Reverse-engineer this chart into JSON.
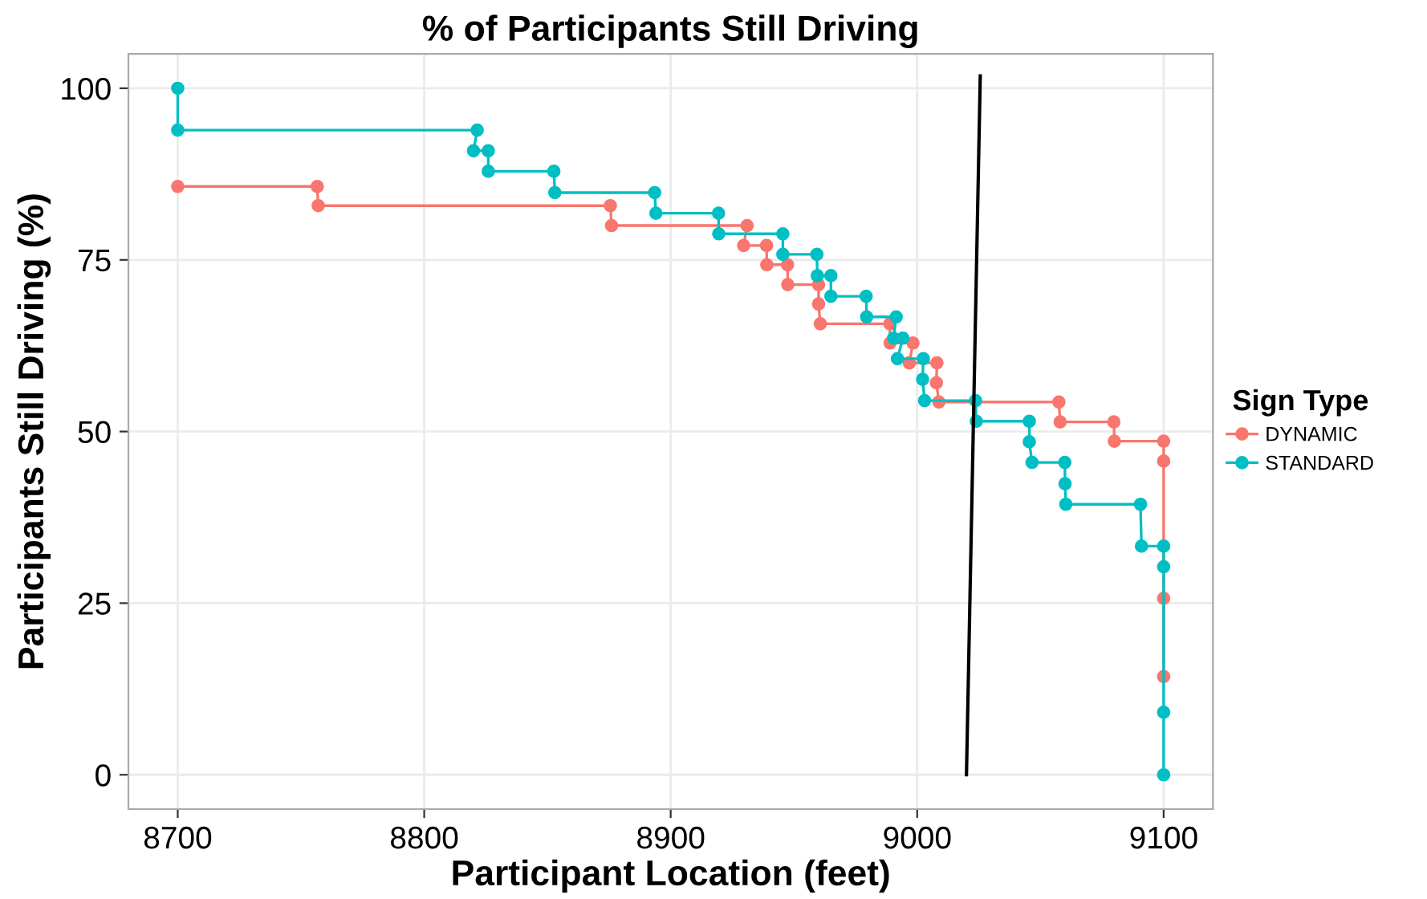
{
  "chart_data": {
    "type": "step",
    "title": "% of Participants Still Driving",
    "xlabel": "Participant Location (feet)",
    "ylabel": "Participants Still Driving (%)",
    "legend_title": "Sign Type",
    "xlim": [
      8680,
      9120
    ],
    "xticks": [
      8700,
      8800,
      8900,
      9000,
      9100
    ],
    "ylim": [
      -5,
      105
    ],
    "yticks": [
      0,
      25,
      50,
      75,
      100
    ],
    "grid": true,
    "legend": "right",
    "marker": "circle",
    "series": [
      {
        "name": "DYNAMIC",
        "color": "#f8766d",
        "x": [
          8700,
          8756.6,
          8757,
          8875.5,
          8876,
          8931,
          8929.6,
          8938.9,
          8939,
          8947.4,
          8947.5,
          8960,
          8960,
          8960.7,
          8988.9,
          8989,
          8998.3,
          8996.8,
          9008,
          9007.8,
          9008.8,
          9057.5,
          9058,
          9079.8,
          9080,
          9100,
          9100,
          9100,
          9100
        ],
        "values": [
          85.7,
          85.7,
          82.9,
          82.9,
          80.0,
          80.0,
          77.1,
          77.1,
          74.3,
          74.3,
          71.4,
          71.4,
          68.6,
          65.7,
          65.7,
          62.9,
          62.9,
          60.0,
          60.0,
          57.1,
          54.3,
          54.3,
          51.4,
          51.4,
          48.6,
          48.6,
          45.7,
          25.7,
          14.3
        ]
      },
      {
        "name": "STANDARD",
        "color": "#00bfc4",
        "x": [
          8700,
          8700,
          8821.5,
          8820,
          8826,
          8826,
          8852.6,
          8853,
          8893.5,
          8894,
          8919.4,
          8919.5,
          8945.5,
          8945.5,
          8959.3,
          8959.5,
          8965,
          8965,
          8979.3,
          8979.5,
          8991.5,
          8990.4,
          8994.2,
          8992,
          9002.5,
          9002.2,
          9003,
          9023.7,
          9024,
          9045.5,
          9045.5,
          9046.6,
          9059.9,
          9060,
          9060.3,
          9090.6,
          9091,
          9100,
          9100,
          9100,
          9100
        ],
        "values": [
          100,
          93.9,
          93.9,
          90.9,
          90.9,
          87.9,
          87.9,
          84.8,
          84.8,
          81.8,
          81.8,
          78.8,
          78.8,
          75.8,
          75.8,
          72.7,
          72.7,
          69.7,
          69.7,
          66.7,
          66.7,
          63.6,
          63.6,
          60.6,
          60.6,
          57.6,
          54.5,
          54.5,
          51.5,
          51.5,
          48.5,
          45.5,
          45.5,
          42.4,
          39.4,
          39.4,
          33.3,
          33.3,
          30.3,
          9.1,
          0
        ]
      },
      {
        "type": "line",
        "color": "#000000",
        "marker": "none",
        "x": [
          9020,
          9025.6
        ],
        "values": [
          0,
          101.8
        ]
      }
    ]
  }
}
